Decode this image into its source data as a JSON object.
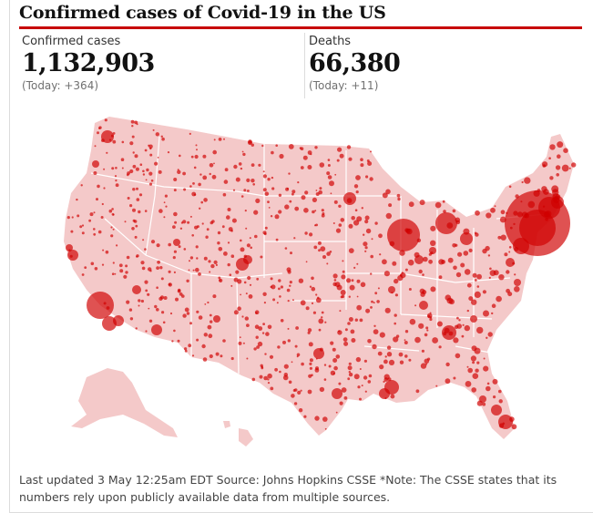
{
  "title": "Confirmed cases of Covid-19 in the US",
  "stats": {
    "cases": {
      "label": "Confirmed cases",
      "value": "1,132,903",
      "today": "(Today: +364)"
    },
    "deaths": {
      "label": "Deaths",
      "value": "66,380",
      "today": "(Today: +11)"
    }
  },
  "colors": {
    "accent": "#c70000",
    "land": "#f4c9c9",
    "border": "#ffffff",
    "bubble": "#d00000"
  },
  "footer": "Last updated 3 May 12:25am EDT Source: Johns Hopkins CSSE *Note: The CSSE states that its numbers rely upon publicly available data from multiple sources."
}
